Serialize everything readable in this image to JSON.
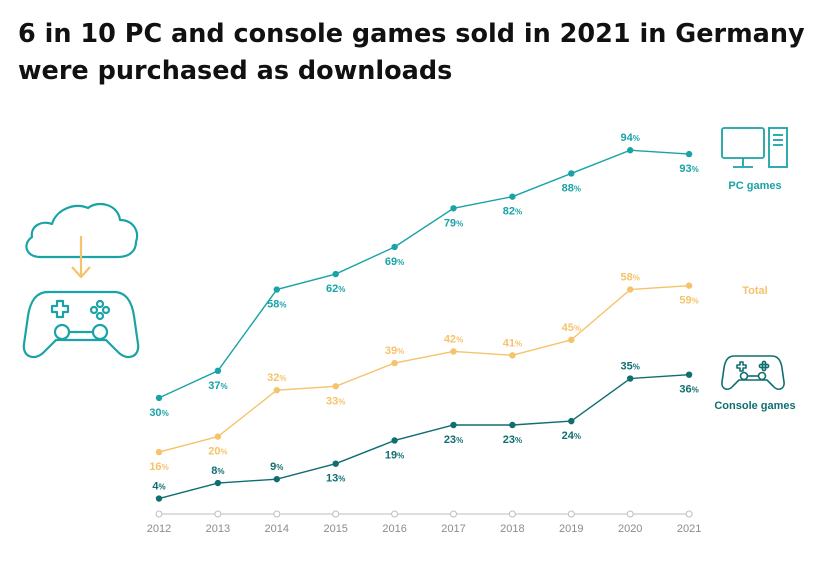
{
  "title": "6 in 10 PC and console games sold in 2021 in Germany were purchased as downloads",
  "colors": {
    "pc": "#1aa3a6",
    "total": "#f5c36b",
    "console": "#0f6e70",
    "axis": "#bdbdbd",
    "tick": "#8c8c8c"
  },
  "icons": {
    "left": [
      "cloud-download-icon",
      "gamepad-icon"
    ],
    "pc": "desktop-computer-icon",
    "console": "gamepad-icon"
  },
  "chart_data": {
    "type": "line",
    "title": "6 in 10 PC and console games sold in 2021 in Germany were purchased as downloads",
    "x": [
      "2012",
      "2013",
      "2014",
      "2015",
      "2016",
      "2017",
      "2018",
      "2019",
      "2020",
      "2021"
    ],
    "unit": "%",
    "ylim": [
      0,
      100
    ],
    "grid": false,
    "legend": "right",
    "series": [
      {
        "key": "pc",
        "name": "PC games",
        "values": [
          30,
          37,
          58,
          62,
          69,
          79,
          82,
          88,
          94,
          93
        ]
      },
      {
        "key": "total",
        "name": "Total",
        "values": [
          16,
          20,
          32,
          33,
          39,
          42,
          41,
          45,
          58,
          59
        ]
      },
      {
        "key": "console",
        "name": "Console games",
        "values": [
          4,
          8,
          9,
          13,
          19,
          23,
          23,
          24,
          35,
          36
        ]
      }
    ]
  }
}
